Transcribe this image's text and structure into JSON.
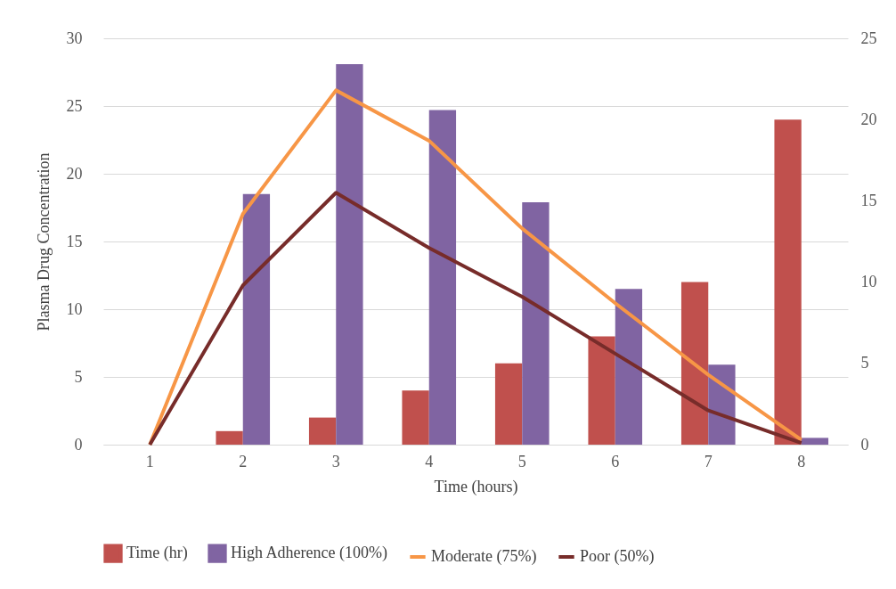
{
  "chart_data": {
    "type": "bar",
    "xlabel": "Time (hours)",
    "ylabel": "Plasma Drug Concentration",
    "categories": [
      "1",
      "2",
      "3",
      "4",
      "5",
      "6",
      "7",
      "8"
    ],
    "series": [
      {
        "name": "Time (hr)",
        "color": "#c0504d",
        "values": [
          0,
          1,
          2,
          4,
          6,
          8,
          12,
          24
        ]
      },
      {
        "name": "High Adherence (100%)",
        "color": "#8064a2",
        "values": [
          0,
          18.5,
          28.1,
          24.7,
          17.9,
          11.5,
          5.9,
          0.5
        ]
      },
      {
        "name": "Moderate (75%)",
        "type": "line",
        "axis": "y2",
        "color": "#f79646",
        "values": [
          0,
          14.2,
          21.8,
          18.7,
          13.3,
          8.7,
          4.3,
          0.3
        ]
      },
      {
        "name": "Poor (50%)",
        "type": "line",
        "axis": "y2",
        "color": "#772c2a",
        "values": [
          0,
          9.8,
          15.5,
          12.1,
          9.1,
          5.6,
          2.1,
          0.1
        ]
      }
    ],
    "ylim": [
      0,
      30
    ],
    "yticks": [
      0,
      5,
      10,
      15,
      20,
      25,
      30
    ],
    "y2lim": [
      0,
      25
    ],
    "y2ticks": [
      0,
      5,
      10,
      15,
      20,
      25
    ],
    "grid": "y",
    "legend": "bottom"
  }
}
